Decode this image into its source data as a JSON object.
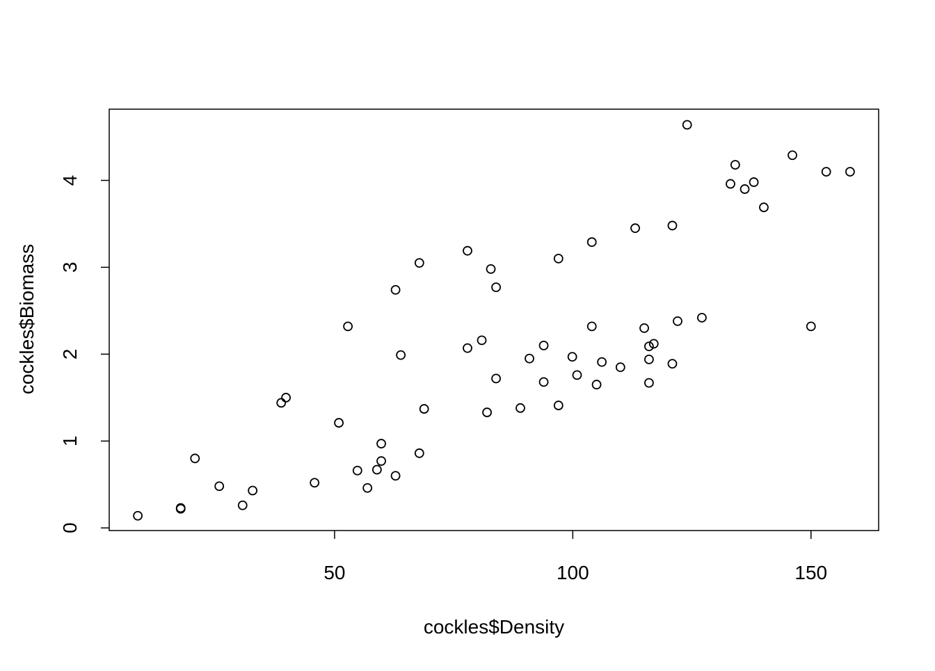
{
  "chart_data": {
    "type": "scatter",
    "xlabel": "cockles$Density",
    "ylabel": "cockles$Biomass",
    "xlim": [
      2.7,
      164.2
    ],
    "ylim": [
      -0.03,
      4.82
    ],
    "xticks": [
      50,
      100,
      150
    ],
    "yticks": [
      0,
      1,
      2,
      3,
      4
    ],
    "color": "#000000",
    "x": [
      8.7,
      17.7,
      17.7,
      20.7,
      25.8,
      30.7,
      32.8,
      38.8,
      39.8,
      45.8,
      50.9,
      52.8,
      54.8,
      56.9,
      58.9,
      59.8,
      59.8,
      62.8,
      62.8,
      63.9,
      67.8,
      67.8,
      68.8,
      77.9,
      77.9,
      80.9,
      82.0,
      82.8,
      83.9,
      83.9,
      89.0,
      90.9,
      93.9,
      93.9,
      97.0,
      97.0,
      99.9,
      100.9,
      104.0,
      104.0,
      105.0,
      106.1,
      110.0,
      113.1,
      115.0,
      116.0,
      116.0,
      116.0,
      117.0,
      120.9,
      120.9,
      122.0,
      124.0,
      127.1,
      133.1,
      134.1,
      136.1,
      138.0,
      140.1,
      146.1,
      150.0,
      153.2,
      158.2
    ],
    "y": [
      0.14,
      0.22,
      0.23,
      0.8,
      0.48,
      0.26,
      0.43,
      1.44,
      1.5,
      0.52,
      1.21,
      2.32,
      0.66,
      0.46,
      0.67,
      0.97,
      0.77,
      0.6,
      2.74,
      1.99,
      0.86,
      3.05,
      1.37,
      3.19,
      2.07,
      2.16,
      1.33,
      2.98,
      2.77,
      1.72,
      1.38,
      1.95,
      2.1,
      1.68,
      3.1,
      1.41,
      1.97,
      1.76,
      3.29,
      2.32,
      1.65,
      1.91,
      1.85,
      3.45,
      2.3,
      2.09,
      1.94,
      1.67,
      2.12,
      3.48,
      1.89,
      2.38,
      4.64,
      2.42,
      3.96,
      4.18,
      3.9,
      3.98,
      3.69,
      4.29,
      2.32,
      4.1,
      4.1
    ]
  }
}
